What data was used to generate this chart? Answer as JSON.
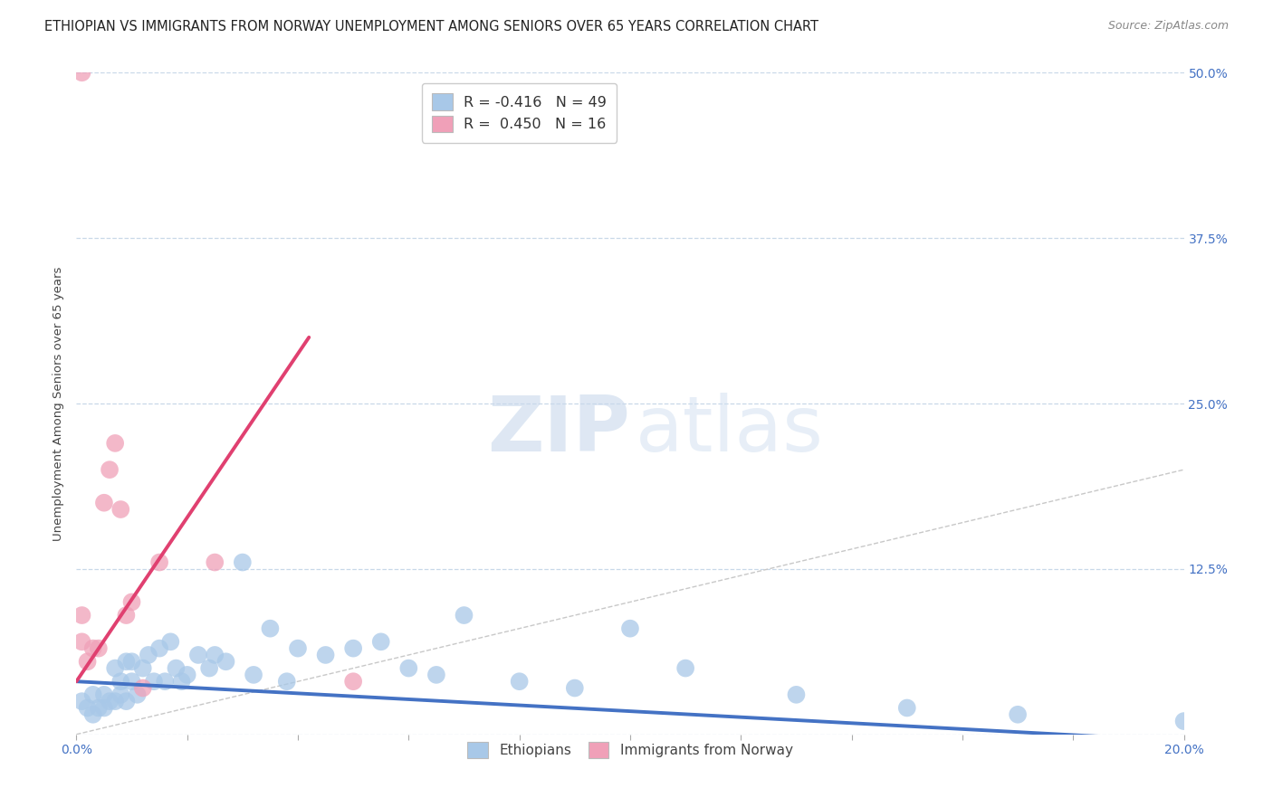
{
  "title": "ETHIOPIAN VS IMMIGRANTS FROM NORWAY UNEMPLOYMENT AMONG SENIORS OVER 65 YEARS CORRELATION CHART",
  "source": "Source: ZipAtlas.com",
  "ylabel": "Unemployment Among Seniors over 65 years",
  "blue_color": "#a8c8e8",
  "pink_color": "#f0a0b8",
  "blue_line_color": "#4472c4",
  "pink_line_color": "#e04070",
  "ethiopians_x": [
    0.001,
    0.002,
    0.003,
    0.003,
    0.004,
    0.005,
    0.005,
    0.006,
    0.007,
    0.007,
    0.008,
    0.008,
    0.009,
    0.009,
    0.01,
    0.01,
    0.011,
    0.012,
    0.013,
    0.014,
    0.015,
    0.016,
    0.017,
    0.018,
    0.019,
    0.02,
    0.022,
    0.024,
    0.025,
    0.027,
    0.03,
    0.032,
    0.035,
    0.038,
    0.04,
    0.045,
    0.05,
    0.055,
    0.06,
    0.065,
    0.07,
    0.08,
    0.09,
    0.1,
    0.11,
    0.13,
    0.15,
    0.17,
    0.2
  ],
  "ethiopians_y": [
    0.025,
    0.02,
    0.03,
    0.015,
    0.02,
    0.03,
    0.02,
    0.025,
    0.05,
    0.025,
    0.04,
    0.03,
    0.055,
    0.025,
    0.055,
    0.04,
    0.03,
    0.05,
    0.06,
    0.04,
    0.065,
    0.04,
    0.07,
    0.05,
    0.04,
    0.045,
    0.06,
    0.05,
    0.06,
    0.055,
    0.13,
    0.045,
    0.08,
    0.04,
    0.065,
    0.06,
    0.065,
    0.07,
    0.05,
    0.045,
    0.09,
    0.04,
    0.035,
    0.08,
    0.05,
    0.03,
    0.02,
    0.015,
    0.01
  ],
  "norway_x": [
    0.001,
    0.001,
    0.002,
    0.003,
    0.004,
    0.005,
    0.006,
    0.007,
    0.008,
    0.009,
    0.01,
    0.012,
    0.015,
    0.025,
    0.05,
    0.001
  ],
  "norway_y": [
    0.07,
    0.09,
    0.055,
    0.065,
    0.065,
    0.175,
    0.2,
    0.22,
    0.17,
    0.09,
    0.1,
    0.035,
    0.13,
    0.13,
    0.04,
    0.5
  ],
  "blue_trend_x": [
    0.0,
    0.2
  ],
  "blue_trend_y": [
    0.04,
    -0.005
  ],
  "pink_trend_x": [
    0.0,
    0.042
  ],
  "pink_trend_y": [
    0.04,
    0.3
  ],
  "xlim": [
    0.0,
    0.2
  ],
  "ylim": [
    0.0,
    0.5
  ],
  "watermark_zip": "ZIP",
  "watermark_atlas": "atlas",
  "background_color": "#ffffff",
  "grid_color": "#c8d8e8",
  "title_fontsize": 10.5,
  "axis_fontsize": 9.5,
  "tick_fontsize": 10,
  "right_tick_color": "#4472c4"
}
